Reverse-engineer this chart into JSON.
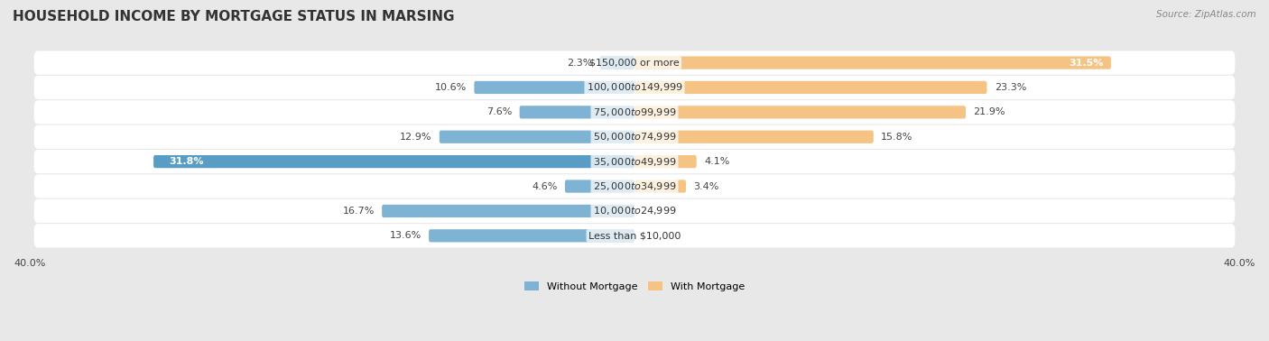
{
  "title": "HOUSEHOLD INCOME BY MORTGAGE STATUS IN MARSING",
  "source": "Source: ZipAtlas.com",
  "categories": [
    "Less than $10,000",
    "$10,000 to $24,999",
    "$25,000 to $34,999",
    "$35,000 to $49,999",
    "$50,000 to $74,999",
    "$75,000 to $99,999",
    "$100,000 to $149,999",
    "$150,000 or more"
  ],
  "without_mortgage": [
    13.6,
    16.7,
    4.6,
    31.8,
    12.9,
    7.6,
    10.6,
    2.3
  ],
  "with_mortgage": [
    0.0,
    0.0,
    3.4,
    4.1,
    15.8,
    21.9,
    23.3,
    31.5
  ],
  "without_mortgage_color": "#7FB3D3",
  "with_mortgage_color": "#F5C484",
  "bar_highlight_color": "#5A9DC4",
  "bar_highlight_index": 3,
  "background_color": "#e8e8e8",
  "xlim": 40.0,
  "legend_label_without": "Without Mortgage",
  "legend_label_with": "With Mortgage",
  "title_fontsize": 11,
  "label_fontsize": 8,
  "axis_fontsize": 8
}
